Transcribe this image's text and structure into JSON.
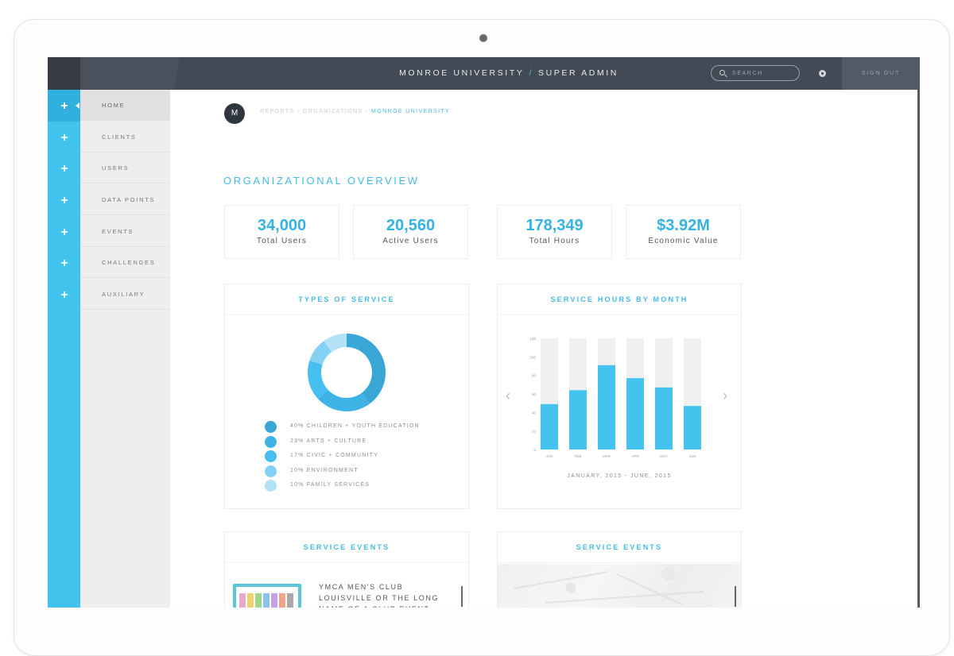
{
  "header": {
    "org": "MONROE UNIVERSITY",
    "separator": "/",
    "role": "SUPER ADMIN",
    "search_placeholder": "SEARCH",
    "sign_out": "SIGN OUT"
  },
  "sidebar": {
    "items": [
      {
        "label": "HOME",
        "active": true
      },
      {
        "label": "CLIENTS",
        "active": false
      },
      {
        "label": "USERS",
        "active": false
      },
      {
        "label": "DATA POINTS",
        "active": false
      },
      {
        "label": "EVENTS",
        "active": false
      },
      {
        "label": "CHALLENGES",
        "active": false
      },
      {
        "label": "AUXILIARY",
        "active": false
      }
    ]
  },
  "breadcrumb": {
    "avatar_letter": "M",
    "path": "REPORTS › ORGANIZATIONS ›",
    "current": "MONROE UNIVERSITY"
  },
  "overview": {
    "title": "ORGANIZATIONAL OVERVIEW",
    "stats": [
      {
        "value": "34,000",
        "label": "Total Users"
      },
      {
        "value": "20,560",
        "label": "Active Users"
      },
      {
        "value": "178,349",
        "label": "Total Hours"
      },
      {
        "value": "$3.92M",
        "label": "Economic Value"
      }
    ]
  },
  "types_of_service": {
    "title": "TYPES OF SERVICE",
    "legend": [
      {
        "label": "40%  CHILDREN + YOUTH EDUCATION",
        "percent": 40,
        "color": "#3aa6d6"
      },
      {
        "label": "23%  ARTS + CULTURE",
        "percent": 23,
        "color": "#3fb3e6"
      },
      {
        "label": "17%  CIVIC + COMMUNITY",
        "percent": 17,
        "color": "#45bff0"
      },
      {
        "label": "10%  ENVIRONMENT",
        "percent": 10,
        "color": "#84d2f3"
      },
      {
        "label": "10%  FAMILY SERVICES",
        "percent": 10,
        "color": "#b3e2f7"
      }
    ]
  },
  "service_hours": {
    "title": "SERVICE HOURS BY MONTH",
    "period": "JANUARY, 2015 - JUNE, 2015"
  },
  "chart_data": {
    "type": "bar",
    "categories": [
      "JAN",
      "FEB",
      "MAR",
      "APR",
      "MAY",
      "JUN"
    ],
    "values": [
      49,
      64,
      91,
      77,
      67,
      47
    ],
    "yticks": [
      "0",
      "20",
      "40",
      "60",
      "80",
      "100",
      "120"
    ],
    "ylim": [
      0,
      120
    ],
    "bar_color": "#45c3ef",
    "track_color": "#efefef"
  },
  "service_events": {
    "title": "SERVICE EVENTS",
    "event_title": "YMCA MEN'S CLUB LOUISVILLE OR THE LONG NAME OF A CLUB EVENT"
  },
  "service_events_map": {
    "title": "SERVICE EVENTS"
  }
}
